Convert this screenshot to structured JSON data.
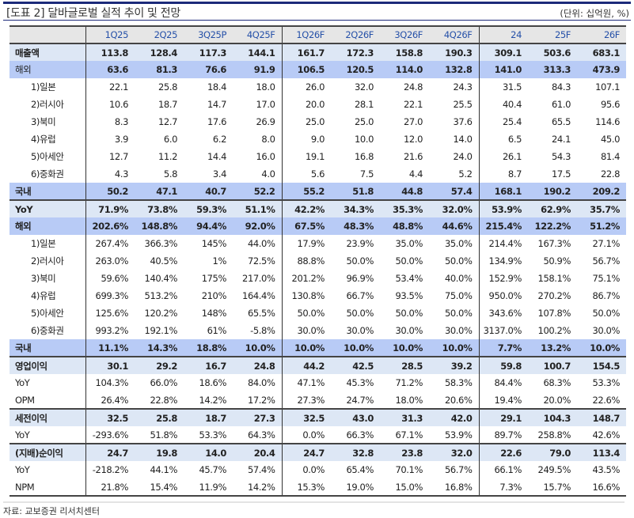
{
  "title": "[도표 2] 달바글로벌 실적 추이 및 전망",
  "unit": "(단위: 십억원, %)",
  "source": "자료: 교보증권 리서치센터",
  "colors": {
    "header_text": "#2550a8",
    "light_row": "#dde7f5",
    "dark_row": "#b8cbf6",
    "rule": "#1c2a7a"
  },
  "columns": [
    "1Q25",
    "2Q25",
    "3Q25P",
    "4Q25F",
    "1Q26F",
    "2Q26F",
    "3Q26F",
    "4Q26F",
    "24",
    "25F",
    "26F"
  ],
  "rows": [
    {
      "label": "매출액",
      "style": "light",
      "bold": true,
      "values": [
        "113.8",
        "128.4",
        "117.3",
        "144.1",
        "161.7",
        "172.3",
        "158.8",
        "190.3",
        "309.1",
        "503.6",
        "683.1"
      ]
    },
    {
      "label": "해외",
      "style": "dark",
      "bold": true,
      "labelRegular": true,
      "values": [
        "63.6",
        "81.3",
        "76.6",
        "91.9",
        "106.5",
        "120.5",
        "114.0",
        "132.8",
        "141.0",
        "313.3",
        "473.9"
      ]
    },
    {
      "label": "1)일본",
      "indent": true,
      "values": [
        "22.1",
        "25.8",
        "18.4",
        "18.0",
        "26.0",
        "32.0",
        "24.8",
        "24.3",
        "31.5",
        "84.3",
        "107.1"
      ]
    },
    {
      "label": "2)러시아",
      "indent": true,
      "values": [
        "10.6",
        "18.7",
        "14.7",
        "17.0",
        "20.0",
        "28.1",
        "22.1",
        "25.5",
        "40.4",
        "61.0",
        "95.6"
      ]
    },
    {
      "label": "3)북미",
      "indent": true,
      "values": [
        "8.3",
        "12.7",
        "17.6",
        "26.9",
        "25.0",
        "25.0",
        "27.0",
        "37.6",
        "25.4",
        "65.5",
        "114.6"
      ]
    },
    {
      "label": "4)유럽",
      "indent": true,
      "values": [
        "3.9",
        "6.0",
        "6.2",
        "8.0",
        "9.0",
        "10.0",
        "12.0",
        "14.0",
        "6.5",
        "24.1",
        "45.0"
      ]
    },
    {
      "label": "5)아세안",
      "indent": true,
      "values": [
        "12.7",
        "11.2",
        "14.4",
        "16.0",
        "19.1",
        "16.8",
        "21.6",
        "24.0",
        "26.1",
        "54.3",
        "81.4"
      ]
    },
    {
      "label": "6)중화권",
      "indent": true,
      "values": [
        "4.3",
        "5.8",
        "3.4",
        "4.0",
        "5.6",
        "7.5",
        "4.4",
        "5.2",
        "8.7",
        "17.5",
        "22.8"
      ]
    },
    {
      "label": "국내",
      "style": "dark",
      "bold": true,
      "bottomBorder": true,
      "values": [
        "50.2",
        "47.1",
        "40.7",
        "52.2",
        "55.2",
        "51.8",
        "44.8",
        "57.4",
        "168.1",
        "190.2",
        "209.2"
      ]
    },
    {
      "label": "YoY",
      "style": "light",
      "bold": true,
      "values": [
        "71.9%",
        "73.8%",
        "59.3%",
        "51.1%",
        "42.2%",
        "34.3%",
        "35.3%",
        "32.0%",
        "53.9%",
        "62.9%",
        "35.7%"
      ]
    },
    {
      "label": "해외",
      "style": "dark",
      "bold": true,
      "values": [
        "202.6%",
        "148.8%",
        "94.4%",
        "92.0%",
        "67.5%",
        "48.3%",
        "48.8%",
        "44.6%",
        "215.4%",
        "122.2%",
        "51.2%"
      ]
    },
    {
      "label": "1)일본",
      "indent": true,
      "values": [
        "267.4%",
        "366.3%",
        "145%",
        "44.0%",
        "17.9%",
        "23.9%",
        "35.0%",
        "35.0%",
        "214.4%",
        "167.3%",
        "27.1%"
      ]
    },
    {
      "label": "2)러시아",
      "indent": true,
      "values": [
        "263.0%",
        "40.5%",
        "1%",
        "72.5%",
        "88.8%",
        "50.0%",
        "50.0%",
        "50.0%",
        "134.9%",
        "50.9%",
        "56.7%"
      ]
    },
    {
      "label": "3)북미",
      "indent": true,
      "values": [
        "59.6%",
        "140.4%",
        "175%",
        "217.0%",
        "201.2%",
        "96.9%",
        "53.4%",
        "40.0%",
        "152.9%",
        "158.1%",
        "75.1%"
      ]
    },
    {
      "label": "4)유럽",
      "indent": true,
      "values": [
        "699.3%",
        "513.2%",
        "210%",
        "164.4%",
        "130.8%",
        "66.7%",
        "93.5%",
        "75.0%",
        "950.0%",
        "270.2%",
        "86.7%"
      ]
    },
    {
      "label": "5)아세안",
      "indent": true,
      "values": [
        "125.6%",
        "120.2%",
        "148%",
        "65.5%",
        "50.0%",
        "50.0%",
        "50.0%",
        "50.0%",
        "343.6%",
        "107.8%",
        "50.0%"
      ]
    },
    {
      "label": "6)중화권",
      "indent": true,
      "values": [
        "993.2%",
        "192.1%",
        "61%",
        "-5.8%",
        "30.0%",
        "30.0%",
        "30.0%",
        "30.0%",
        "3137.0%",
        "100.2%",
        "30.0%"
      ]
    },
    {
      "label": "국내",
      "style": "dark",
      "bold": true,
      "bottomBorder": true,
      "values": [
        "11.1%",
        "14.3%",
        "18.8%",
        "10.0%",
        "10.0%",
        "10.0%",
        "10.0%",
        "10.0%",
        "7.7%",
        "13.2%",
        "10.0%"
      ]
    },
    {
      "label": "영업이익",
      "style": "light",
      "bold": true,
      "values": [
        "30.1",
        "29.2",
        "16.7",
        "24.8",
        "44.2",
        "42.5",
        "28.5",
        "39.2",
        "59.8",
        "100.7",
        "154.5"
      ]
    },
    {
      "label": "YoY",
      "values": [
        "104.3%",
        "66.0%",
        "18.6%",
        "84.0%",
        "47.1%",
        "45.3%",
        "71.2%",
        "58.3%",
        "84.4%",
        "68.3%",
        "53.3%"
      ]
    },
    {
      "label": "OPM",
      "bottomBorder": true,
      "values": [
        "26.4%",
        "22.8%",
        "14.2%",
        "17.2%",
        "27.3%",
        "24.7%",
        "18.0%",
        "20.6%",
        "19.4%",
        "20.0%",
        "22.6%"
      ]
    },
    {
      "label": "세전이익",
      "style": "light",
      "bold": true,
      "values": [
        "32.5",
        "25.8",
        "18.7",
        "27.3",
        "32.5",
        "43.0",
        "31.3",
        "42.0",
        "29.1",
        "104.3",
        "148.7"
      ]
    },
    {
      "label": "YoY",
      "bottomBorder": true,
      "values": [
        "-293.6%",
        "51.8%",
        "53.3%",
        "64.3%",
        "0.0%",
        "66.3%",
        "67.1%",
        "53.9%",
        "89.7%",
        "258.8%",
        "42.6%"
      ]
    },
    {
      "label": "(지배)순이익",
      "style": "light",
      "bold": true,
      "values": [
        "24.7",
        "19.8",
        "14.0",
        "20.4",
        "24.7",
        "32.8",
        "23.8",
        "32.0",
        "22.6",
        "79.0",
        "113.4"
      ]
    },
    {
      "label": "YoY",
      "values": [
        "-218.2%",
        "44.1%",
        "45.7%",
        "57.4%",
        "0.0%",
        "65.4%",
        "70.1%",
        "56.7%",
        "66.1%",
        "249.5%",
        "43.5%"
      ]
    },
    {
      "label": "NPM",
      "bottomBorder": true,
      "values": [
        "21.8%",
        "15.4%",
        "11.9%",
        "14.2%",
        "15.3%",
        "19.0%",
        "15.0%",
        "16.8%",
        "7.3%",
        "15.7%",
        "16.6%"
      ]
    }
  ]
}
